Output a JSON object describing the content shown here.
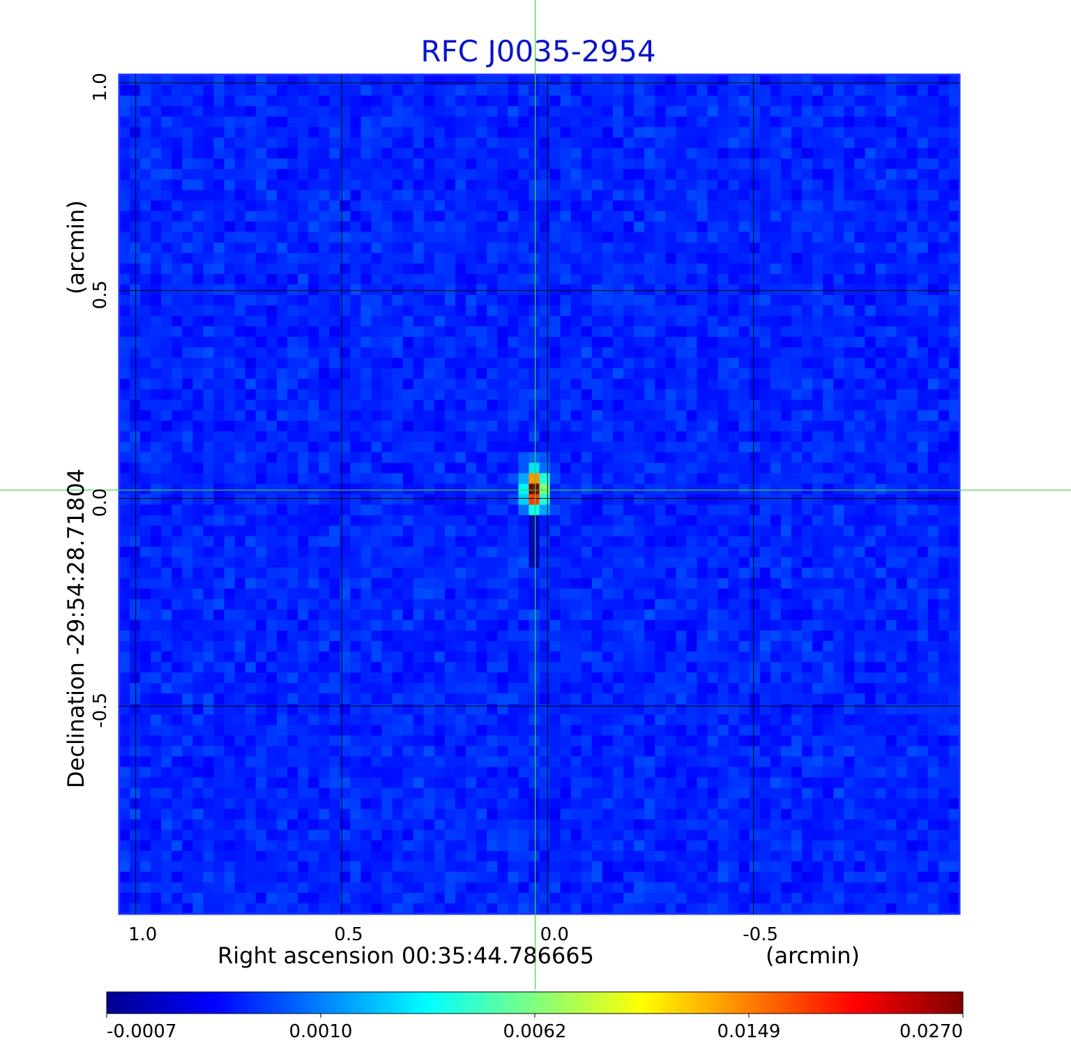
{
  "chart_data": {
    "type": "heatmap",
    "title": "RFC J0035-2954",
    "xlabel": "Right ascension  00:35:44.786665",
    "xlabel_unit": "(arcmin)",
    "ylabel": "Declination  -29:54:28.71804",
    "ylabel_unit": "(arcmin)",
    "x_ticks": [
      1.0,
      0.5,
      0.0,
      -0.5
    ],
    "x_tick_labels": [
      "1.0",
      "0.5",
      "0.0",
      "-0.5"
    ],
    "y_ticks": [
      1.0,
      0.5,
      0.0,
      -0.5
    ],
    "y_tick_labels": [
      "1.0",
      "0.5",
      "0.0",
      "-0.5"
    ],
    "xlim": [
      1.04,
      -1.0
    ],
    "ylim": [
      -1.0,
      1.02
    ],
    "grid": true,
    "crosshair": {
      "x": 0.03,
      "y": 0.02
    },
    "source_peak": {
      "x": 0.03,
      "y": 0.02,
      "value": 0.027
    },
    "noise_level": 0.0002,
    "colorbar": {
      "ticks": [
        -0.0007,
        0.001,
        0.0062,
        0.0149,
        0.027
      ],
      "tick_labels": [
        "-0.0007",
        "0.0010",
        "0.0062",
        "0.0149",
        "0.0270"
      ],
      "colormap": "jet"
    },
    "colors": {
      "title": "#0a14c8",
      "crosshair": "#32dc32",
      "frame": "#1e32ff",
      "background_map": "#2f5ff0"
    }
  }
}
